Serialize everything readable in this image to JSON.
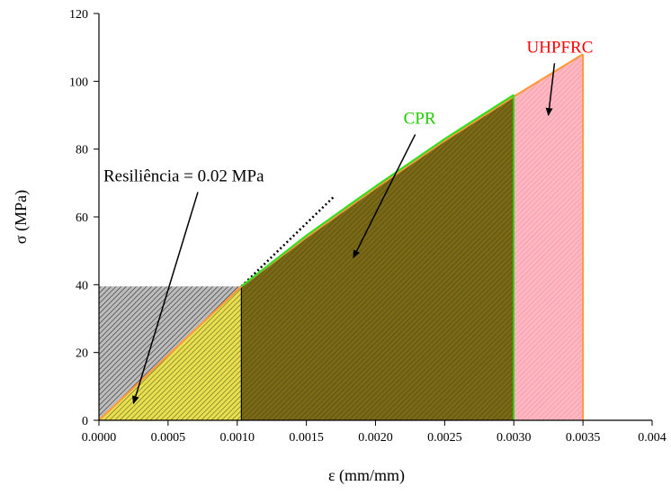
{
  "chart_data": {
    "type": "area",
    "xlabel": "ε (mm/mm)",
    "ylabel": "σ (MPa)",
    "xlim": [
      0,
      0.004
    ],
    "ylim": [
      0,
      120
    ],
    "x_ticks": [
      0,
      0.0005,
      0.001,
      0.0015,
      0.002,
      0.0025,
      0.003,
      0.0035,
      0.004
    ],
    "x_tick_labels": [
      "0.0000",
      "0.0005",
      "0.0010",
      "0.0015",
      "0.0020",
      "0.0025",
      "0.0030",
      "0.0035",
      "0.004"
    ],
    "y_ticks": [
      0,
      20,
      40,
      60,
      80,
      100,
      120
    ],
    "y_tick_labels": [
      "0",
      "20",
      "40",
      "60",
      "80",
      "100",
      "120"
    ],
    "grid": false,
    "series": [
      {
        "name": "UHPFRC",
        "color": "#ff9a3c",
        "fill": "#ffb3be",
        "x": [
          0,
          0.00103,
          0.0015,
          0.002,
          0.0025,
          0.003,
          0.0035
        ],
        "y": [
          0,
          39.5,
          54,
          68.5,
          82.5,
          95.5,
          108
        ]
      },
      {
        "name": "CPR",
        "color": "#33dd22",
        "fill": "#7a6a18",
        "x": [
          0,
          0.00103,
          0.0015,
          0.002,
          0.0025,
          0.003
        ],
        "y": [
          0,
          39.5,
          54.5,
          69,
          83,
          96
        ]
      }
    ],
    "elastic_region": {
      "x": [
        0,
        0.00103
      ],
      "y": [
        0,
        39.5
      ],
      "fill": "#e8e050"
    },
    "resilience_region": {
      "x_end": 0.00103,
      "y_top": 39.5
    },
    "tangent_extension": {
      "x": [
        0.00103,
        0.0017
      ],
      "y": [
        39.5,
        66
      ]
    },
    "annotations": [
      {
        "text": "UHPFRC",
        "color": "#ff0000",
        "x": 0.00306,
        "y": 108.5,
        "arrow_to": [
          0.00325,
          90
        ]
      },
      {
        "text": "CPR",
        "color": "#22cc00",
        "x": 0.00217,
        "y": 87.5,
        "arrow_to": [
          0.00184,
          48
        ]
      },
      {
        "text": "Resiliência = 0.02 MPa",
        "color": "#000000",
        "x": 0.0,
        "y": 70.5,
        "arrow_to": [
          0.00025,
          5
        ]
      }
    ]
  }
}
